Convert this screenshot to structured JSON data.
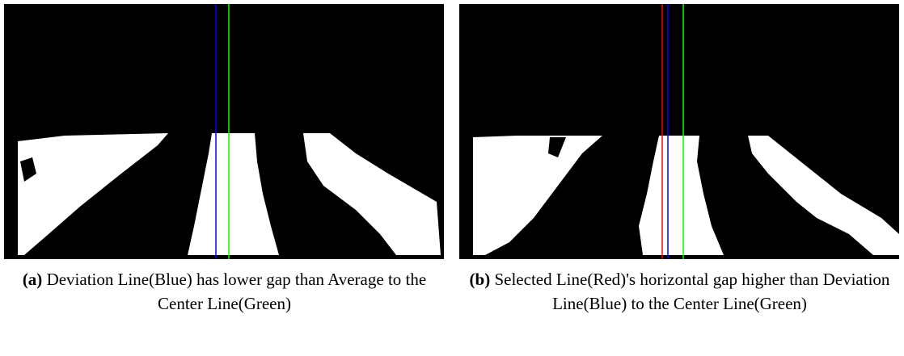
{
  "subfigures": [
    {
      "label": "(a)",
      "caption": "Deviation Line(Blue) has lower gap than Average to the Center Line(Green)"
    },
    {
      "label": "(b)",
      "caption": "Selected Line(Red)'s horizontal gap higher than Deviation Line(Blue) to the Center Line(Green)"
    }
  ]
}
